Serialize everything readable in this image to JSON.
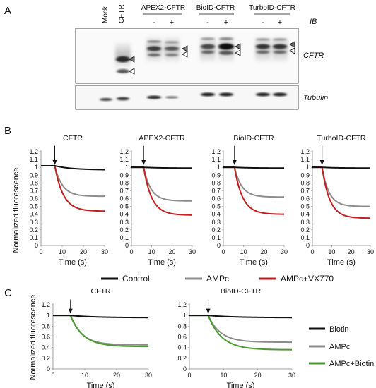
{
  "panelA": {
    "letter": "A",
    "lanes": [
      "Mock",
      "CFTR"
    ],
    "groups": [
      "APEX2-CFTR",
      "BioID-CFTR",
      "TurboID-CFTR"
    ],
    "signs": [
      "-",
      "+"
    ],
    "ib_label": "IB",
    "blot_labels": [
      "CFTR",
      "Tubulin"
    ]
  },
  "panelB": {
    "letter": "B",
    "ylabel": "Normalized fluorescence",
    "xlabel": "Time (s)",
    "legend": [
      {
        "name": "Control",
        "color": "#111111"
      },
      {
        "name": "AMPc",
        "color": "#8c8c8c"
      },
      {
        "name": "AMPc+VX770",
        "color": "#c41e1e"
      }
    ]
  },
  "panelC": {
    "letter": "C",
    "ylabel": "Normalized fluorescence",
    "xlabel": "Time (s)",
    "legend": [
      {
        "name": "Biotin",
        "color": "#111111"
      },
      {
        "name": "AMPc",
        "color": "#8c8c8c"
      },
      {
        "name": "AMPc+Biotin",
        "color": "#4e9a32"
      }
    ]
  },
  "chart_data": [
    {
      "type": "line",
      "title": "CFTR",
      "xlabel": "Time (s)",
      "ylabel": "Normalized fluorescence",
      "xlim": [
        0,
        30
      ],
      "ylim": [
        0,
        1.2
      ],
      "xticks": [
        0,
        10,
        20,
        30
      ],
      "yticks": [
        0,
        0.1,
        0.2,
        0.3,
        0.4,
        0.5,
        0.6,
        0.7,
        0.8,
        0.9,
        1,
        1.1,
        1.2
      ],
      "stimulus_time": 6.5,
      "series": [
        {
          "name": "Control",
          "color": "#111111",
          "start": 1.02,
          "end": 0.97
        },
        {
          "name": "AMPc",
          "color": "#8c8c8c",
          "start": 1.02,
          "end": 0.63
        },
        {
          "name": "AMPc+VX770",
          "color": "#c41e1e",
          "start": 1.02,
          "end": 0.44
        }
      ]
    },
    {
      "type": "line",
      "title": "APEX2-CFTR",
      "xlabel": "Time (s)",
      "ylabel": "",
      "xlim": [
        0,
        30
      ],
      "ylim": [
        0,
        1.2
      ],
      "xticks": [
        0,
        10,
        20,
        30
      ],
      "yticks": [
        0,
        0.1,
        0.2,
        0.3,
        0.4,
        0.5,
        0.6,
        0.7,
        0.8,
        0.9,
        1,
        1.1,
        1.2
      ],
      "stimulus_time": 6,
      "series": [
        {
          "name": "Control",
          "color": "#111111",
          "start": 1.0,
          "end": 0.99
        },
        {
          "name": "AMPc",
          "color": "#8c8c8c",
          "start": 1.0,
          "end": 0.57
        },
        {
          "name": "AMPc+VX770",
          "color": "#c41e1e",
          "start": 1.0,
          "end": 0.39
        }
      ]
    },
    {
      "type": "line",
      "title": "BioID-CFTR",
      "xlabel": "Time (s)",
      "ylabel": "",
      "xlim": [
        0,
        30
      ],
      "ylim": [
        0,
        1.2
      ],
      "xticks": [
        0,
        10,
        20,
        30
      ],
      "yticks": [
        0,
        0.1,
        0.2,
        0.3,
        0.4,
        0.5,
        0.6,
        0.7,
        0.8,
        0.9,
        1,
        1.1,
        1.2
      ],
      "stimulus_time": 5.5,
      "series": [
        {
          "name": "Control",
          "color": "#111111",
          "start": 1.0,
          "end": 0.99
        },
        {
          "name": "AMPc",
          "color": "#8c8c8c",
          "start": 1.0,
          "end": 0.62
        },
        {
          "name": "AMPc+VX770",
          "color": "#c41e1e",
          "start": 1.0,
          "end": 0.4
        }
      ]
    },
    {
      "type": "line",
      "title": "TurboID-CFTR",
      "xlabel": "Time (s)",
      "ylabel": "",
      "xlim": [
        0,
        30
      ],
      "ylim": [
        0,
        1.2
      ],
      "xticks": [
        0,
        10,
        20,
        30
      ],
      "yticks": [
        0,
        0.1,
        0.2,
        0.3,
        0.4,
        0.5,
        0.6,
        0.7,
        0.8,
        0.9,
        1,
        1.1,
        1.2
      ],
      "stimulus_time": 5,
      "series": [
        {
          "name": "Control",
          "color": "#111111",
          "start": 1.0,
          "end": 0.99
        },
        {
          "name": "AMPc",
          "color": "#8c8c8c",
          "start": 1.0,
          "end": 0.5
        },
        {
          "name": "AMPc+VX770",
          "color": "#c41e1e",
          "start": 1.0,
          "end": 0.35
        }
      ]
    },
    {
      "type": "line",
      "title": "CFTR",
      "xlabel": "Time (s)",
      "ylabel": "Normalized fluorescence",
      "xlim": [
        0,
        30
      ],
      "ylim": [
        0,
        1.2
      ],
      "xticks": [
        0,
        10,
        20,
        30
      ],
      "yticks": [
        0,
        0.2,
        0.4,
        0.6,
        0.8,
        1,
        1.2
      ],
      "stimulus_time": 5.5,
      "series": [
        {
          "name": "Biotin",
          "color": "#111111",
          "start": 1.0,
          "end": 0.96
        },
        {
          "name": "AMPc",
          "color": "#8c8c8c",
          "start": 1.0,
          "end": 0.45
        },
        {
          "name": "AMPc+Biotin",
          "color": "#4e9a32",
          "start": 1.0,
          "end": 0.42
        }
      ]
    },
    {
      "type": "line",
      "title": "BioID-CFTR",
      "xlabel": "Time (s)",
      "ylabel": "",
      "xlim": [
        0,
        30
      ],
      "ylim": [
        0,
        1.2
      ],
      "xticks": [
        0,
        10,
        20,
        30
      ],
      "yticks": [
        0,
        0.2,
        0.4,
        0.6,
        0.8,
        1,
        1.2
      ],
      "stimulus_time": 5.5,
      "series": [
        {
          "name": "Biotin",
          "color": "#111111",
          "start": 1.0,
          "end": 0.96
        },
        {
          "name": "AMPc",
          "color": "#8c8c8c",
          "start": 1.0,
          "end": 0.5
        },
        {
          "name": "AMPc+Biotin",
          "color": "#4e9a32",
          "start": 1.0,
          "end": 0.36
        }
      ]
    }
  ]
}
